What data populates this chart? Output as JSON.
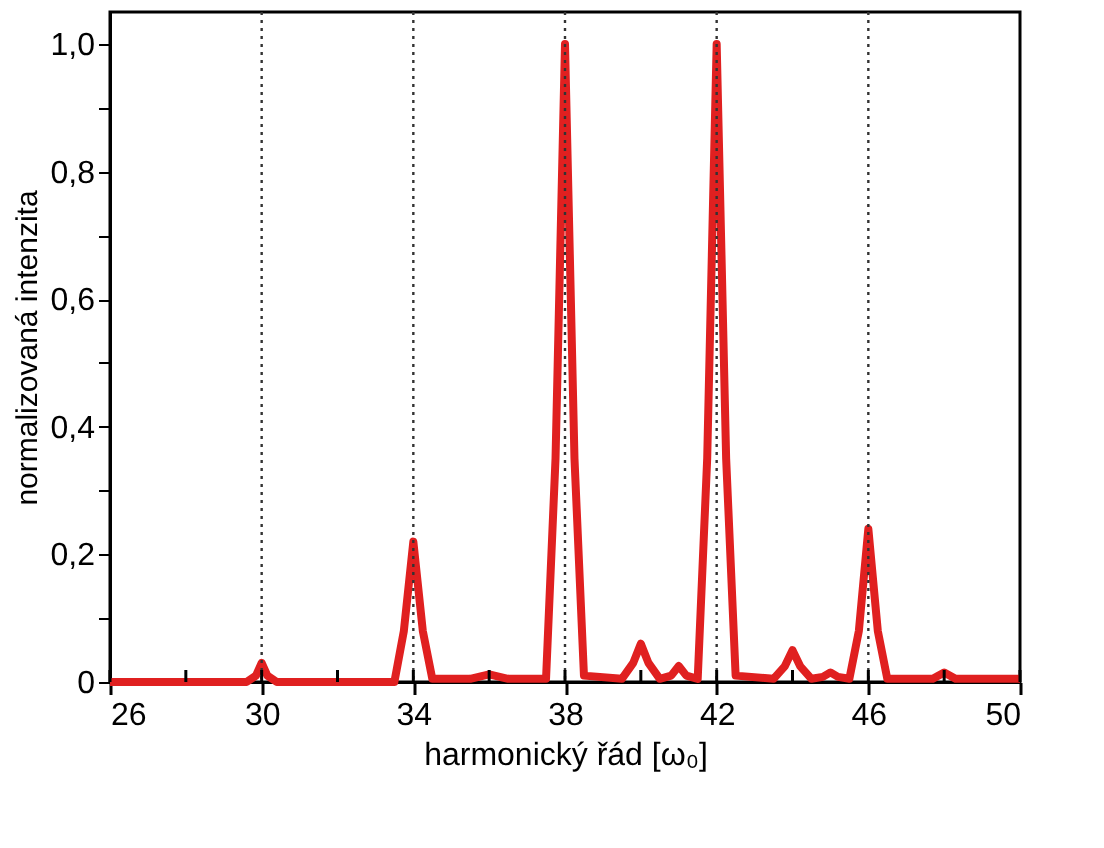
{
  "chart_data": {
    "type": "line",
    "xlabel": "harmonický řád [ω₀]",
    "ylabel": "normalizovaná intenzita",
    "x": [
      26,
      29.6,
      29.85,
      30,
      30.15,
      30.4,
      33.5,
      33.75,
      34,
      34.25,
      34.5,
      35.5,
      36,
      36.5,
      37.5,
      37.75,
      38,
      38.25,
      38.5,
      39.5,
      39.8,
      40,
      40.2,
      40.5,
      40.8,
      41,
      41.2,
      41.5,
      41.75,
      42,
      42.25,
      42.5,
      43.5,
      43.8,
      44,
      44.2,
      44.5,
      44.8,
      45,
      45.2,
      45.5,
      45.75,
      46,
      46.25,
      46.5,
      47.7,
      48,
      48.3,
      50
    ],
    "series": [
      {
        "color": "#e02020",
        "values": [
          0,
          0,
          0.01,
          0.03,
          0.01,
          0,
          0,
          0.08,
          0.22,
          0.08,
          0.005,
          0.005,
          0.012,
          0.005,
          0.005,
          0.35,
          1.0,
          0.35,
          0.01,
          0.005,
          0.03,
          0.06,
          0.03,
          0.005,
          0.01,
          0.025,
          0.01,
          0.005,
          0.35,
          1.0,
          0.35,
          0.01,
          0.005,
          0.025,
          0.05,
          0.025,
          0.005,
          0.008,
          0.015,
          0.008,
          0.005,
          0.08,
          0.24,
          0.08,
          0.005,
          0.005,
          0.015,
          0.005,
          0.005
        ]
      }
    ],
    "xlim": [
      26,
      50
    ],
    "ylim": [
      0,
      1.05
    ],
    "xticks": [
      26,
      {
        "value": 28,
        "label": null
      },
      30,
      {
        "value": 32,
        "label": null
      },
      34,
      {
        "value": 36,
        "label": null
      },
      38,
      {
        "value": 40,
        "label": null
      },
      42,
      {
        "value": 44,
        "label": null
      },
      46,
      {
        "value": 48,
        "label": null
      },
      50
    ],
    "yticks": [
      0,
      {
        "value": 0.1,
        "label": null
      },
      {
        "value": 0.2,
        "label": "0,2"
      },
      {
        "value": 0.3,
        "label": null
      },
      {
        "value": 0.4,
        "label": "0,4"
      },
      {
        "value": 0.5,
        "label": null
      },
      {
        "value": 0.6,
        "label": "0,6"
      },
      {
        "value": 0.7,
        "label": null
      },
      {
        "value": 0.8,
        "label": "0,8"
      },
      {
        "value": 0.9,
        "label": null
      },
      {
        "value": 1.0,
        "label": "1,0"
      }
    ],
    "ref_lines": [
      {
        "axis": "x",
        "value": 30,
        "color": "#333333",
        "line_style": "dotted"
      },
      {
        "axis": "x",
        "value": 34,
        "color": "#333333",
        "line_style": "dotted"
      },
      {
        "axis": "x",
        "value": 38,
        "color": "#333333",
        "line_style": "dotted"
      },
      {
        "axis": "x",
        "value": 42,
        "color": "#333333",
        "line_style": "dotted"
      },
      {
        "axis": "x",
        "value": 46,
        "color": "#333333",
        "line_style": "dotted"
      }
    ],
    "grid": false,
    "marker": "none",
    "line_style": "solid"
  }
}
